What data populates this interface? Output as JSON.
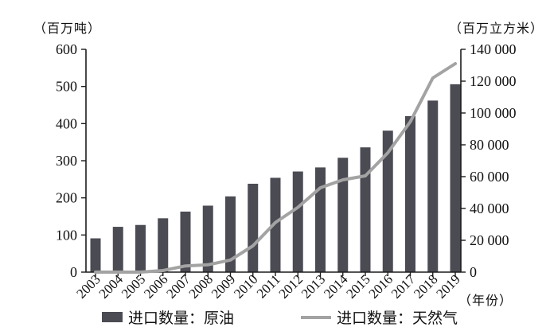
{
  "colors": {
    "bar": "#4b4b54",
    "line": "#a3a3a3",
    "axis": "#1c1c1c",
    "text": "#111111",
    "background": "#ffffff"
  },
  "legend": [
    {
      "label": "进口数量：原油",
      "swatch": "bar-swatch"
    },
    {
      "label": "进口数量：天然气",
      "swatch": "line-swatch"
    }
  ],
  "chart_data": {
    "type": "bar",
    "subtype": "bar+line dual-axis combo",
    "categories": [
      "2003",
      "2004",
      "2005",
      "2006",
      "2007",
      "2008",
      "2009",
      "2010",
      "2011",
      "2012",
      "2013",
      "2014",
      "2015",
      "2016",
      "2017",
      "2018",
      "2019"
    ],
    "series": [
      {
        "name": "进口数量：原油",
        "type": "bar",
        "axis": "left",
        "unit": "百万吨",
        "values": [
          91,
          122,
          127,
          145,
          163,
          179,
          204,
          238,
          254,
          271,
          282,
          308,
          336,
          381,
          420,
          462,
          506
        ]
      },
      {
        "name": "进口数量：天然气",
        "type": "line",
        "axis": "right",
        "unit": "百万立方米",
        "values": [
          0,
          0,
          0,
          1000,
          3900,
          4600,
          7600,
          16500,
          31200,
          40700,
          53000,
          58000,
          60500,
          75000,
          94500,
          122000,
          131000
        ]
      }
    ],
    "left_axis": {
      "label": "（百万吨）",
      "range": [
        0,
        600
      ],
      "tick_step": 100,
      "ticks": [
        0,
        100,
        200,
        300,
        400,
        500,
        600
      ]
    },
    "right_axis": {
      "label": "（百万立方米）",
      "range": [
        0,
        140000
      ],
      "tick_step": 20000,
      "ticks": [
        0,
        20000,
        40000,
        60000,
        80000,
        100000,
        120000,
        140000
      ],
      "tick_labels": [
        "0",
        "20 000",
        "40 000",
        "60 000",
        "80 000",
        "100 000",
        "120 000",
        "140 000"
      ]
    },
    "x_axis": {
      "label": "（年份）",
      "tick_rotation_deg": -45
    },
    "grid": false,
    "legend_position": "bottom"
  }
}
